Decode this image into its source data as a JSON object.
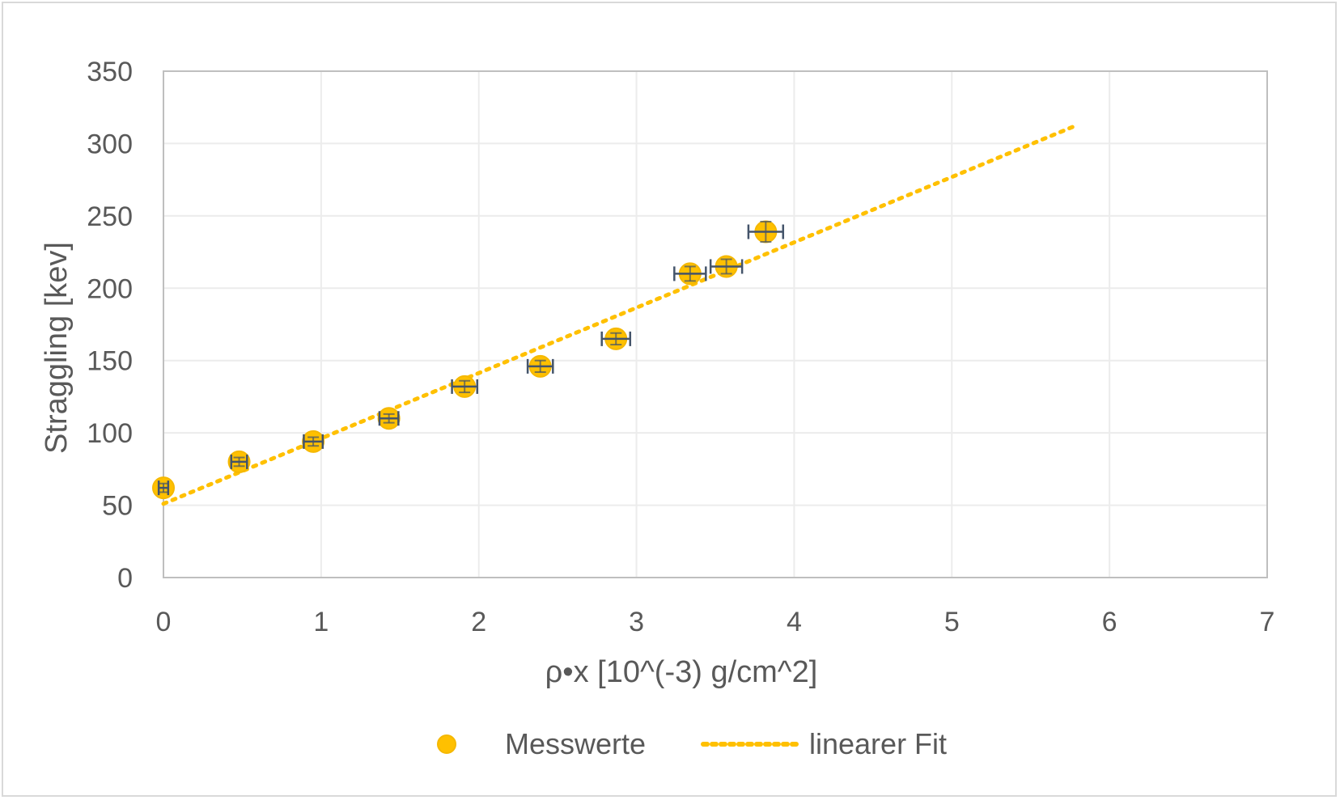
{
  "chart_data": {
    "type": "scatter",
    "xlabel": "ρ•x [10^(-3) g/cm^2]",
    "ylabel": "Straggling [kev]",
    "xlim": [
      0,
      7
    ],
    "ylim": [
      0,
      350
    ],
    "x_ticks": [
      "0",
      "1",
      "2",
      "3",
      "4",
      "5",
      "6",
      "7"
    ],
    "y_ticks": [
      "0",
      "50",
      "100",
      "150",
      "200",
      "250",
      "300",
      "350"
    ],
    "grid": true,
    "legend_position": "bottom",
    "series": [
      {
        "name": "Messwerte",
        "kind": "points_with_error_bars",
        "color": "#ffc000",
        "error_bar_color": "#44546a",
        "points": [
          {
            "x": 0.0,
            "y": 62,
            "xerr": 0.03,
            "yerr": 3
          },
          {
            "x": 0.48,
            "y": 80,
            "xerr": 0.05,
            "yerr": 3
          },
          {
            "x": 0.95,
            "y": 94,
            "xerr": 0.06,
            "yerr": 3
          },
          {
            "x": 1.43,
            "y": 110,
            "xerr": 0.06,
            "yerr": 3
          },
          {
            "x": 1.91,
            "y": 132,
            "xerr": 0.08,
            "yerr": 4
          },
          {
            "x": 2.39,
            "y": 146,
            "xerr": 0.08,
            "yerr": 4
          },
          {
            "x": 2.87,
            "y": 165,
            "xerr": 0.09,
            "yerr": 4
          },
          {
            "x": 3.34,
            "y": 210,
            "xerr": 0.1,
            "yerr": 5
          },
          {
            "x": 3.57,
            "y": 215,
            "xerr": 0.1,
            "yerr": 5
          },
          {
            "x": 3.82,
            "y": 239,
            "xerr": 0.11,
            "yerr": 7
          }
        ]
      },
      {
        "name": "linearer Fit",
        "kind": "dotted_line",
        "color": "#ffc000",
        "x": [
          0.0,
          5.8
        ],
        "y": [
          51,
          313
        ]
      }
    ]
  }
}
